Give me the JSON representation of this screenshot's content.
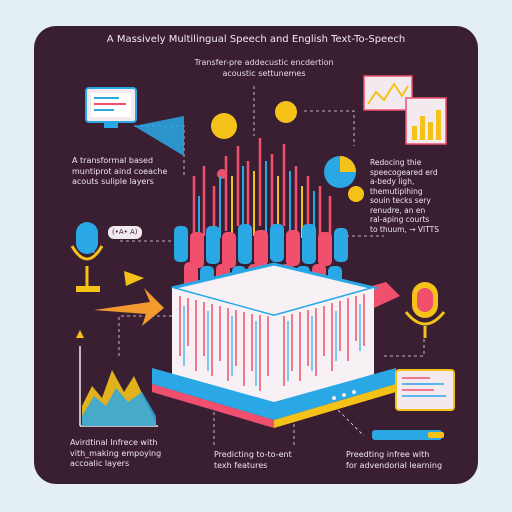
{
  "title": "A Massively Multilingual Speech and English Text-To-Speech",
  "subtitle": [
    "Transfer-pre addecustic encdertion",
    "acoustic settunemes"
  ],
  "left_label_top": [
    "A transformal based",
    "muntiprot aind coeache",
    "acouts suliple layers"
  ],
  "right_label_top": [
    "Redocing thie",
    "speecogeared erd",
    "a-bedy ligh,",
    "themutiplhing",
    "souin tecks sery",
    "renudre, an en",
    "ral-aping courts",
    "to thuum, → VITTS"
  ],
  "bottom_left": [
    "Avirdtinal Infrece with",
    "vith_making empoying",
    "accoalic layers"
  ],
  "bottom_center": [
    "Predicting to-to-ent",
    "texh features"
  ],
  "bottom_right": [
    "Preedting infree with",
    "for advendorial learning"
  ],
  "mic_chip": "(•A• A)",
  "colors": {
    "background": "#e4eef5",
    "card": "#3a1f33",
    "pink": "#f0506e",
    "blue": "#2aa8e6",
    "yellow": "#f5c21a",
    "orange": "#f39a2e",
    "white": "#f3eaf0"
  },
  "icons": [
    "screen-icon",
    "line-chart-icon",
    "bar-chart-icon",
    "pie-chart-icon",
    "microphone-icon",
    "speaker-icon",
    "lightbulb-icon",
    "area-chart-icon",
    "monitor-icon",
    "server-platform-icon"
  ]
}
